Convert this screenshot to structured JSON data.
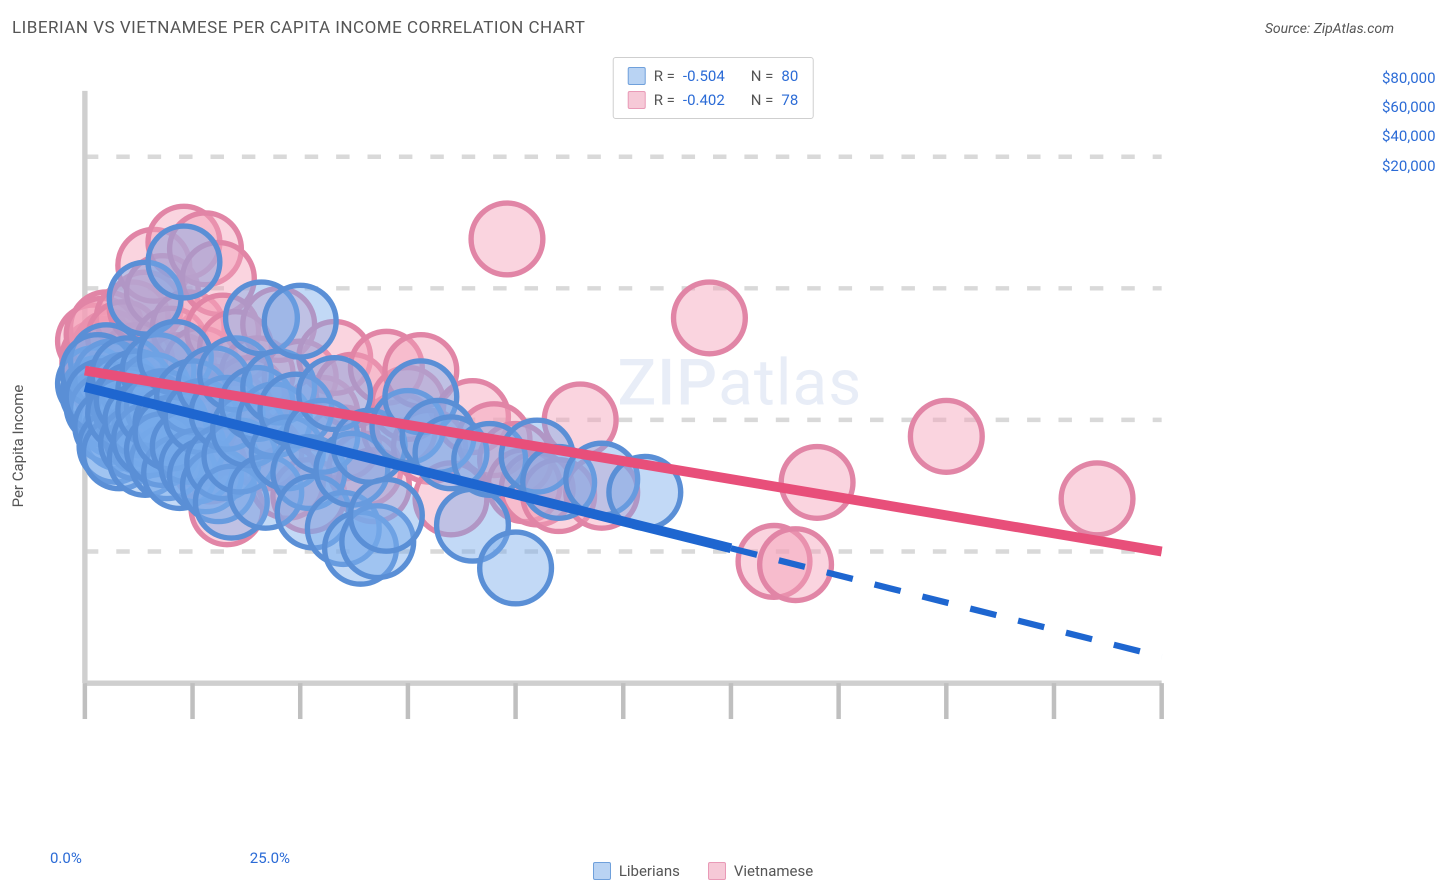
{
  "header": {
    "title": "LIBERIAN VS VIETNAMESE PER CAPITA INCOME CORRELATION CHART",
    "source": "Source: ZipAtlas.com"
  },
  "watermark": {
    "zip": "ZIP",
    "atlas": "atlas"
  },
  "chart": {
    "type": "scatter",
    "background_color": "#ffffff",
    "axis_color": "#cfcfcf",
    "grid_color": "#d9d9d9",
    "tick_color": "#bfbfbf",
    "label_color": "#555555",
    "value_color": "#2b6bd6",
    "ylabel": "Per Capita Income",
    "xlim": [
      0,
      25
    ],
    "ylim": [
      0,
      90000
    ],
    "xticks": [
      0,
      2.5,
      5,
      7.5,
      10,
      12.5,
      15,
      17.5,
      20,
      22.5,
      25
    ],
    "xtick_labels": {
      "0": "0.0%",
      "25": "25.0%"
    },
    "yticks": [
      20000,
      40000,
      60000,
      80000
    ],
    "ytick_labels": {
      "20000": "$20,000",
      "40000": "$40,000",
      "60000": "$60,000",
      "80000": "$80,000"
    },
    "marker_radius": 8,
    "marker_stroke_width": 1.2,
    "trend_line_width": 2.2,
    "series": {
      "liberians": {
        "label": "Liberians",
        "fill": "rgba(120,170,235,0.45)",
        "stroke": "#5a8fd6",
        "swatch_fill": "#b9d3f3",
        "swatch_border": "#6fa0db",
        "r_value": "-0.504",
        "n_value": "80",
        "trend": {
          "x1": 0,
          "y1": 45000,
          "x2": 15,
          "y2": 20500,
          "ext_x2": 25,
          "ext_y2": 4000,
          "color": "#1e66d0"
        },
        "points": [
          [
            0.2,
            45500
          ],
          [
            0.3,
            44000
          ],
          [
            0.5,
            49000
          ],
          [
            0.4,
            42000
          ],
          [
            0.6,
            46500
          ],
          [
            0.3,
            47500
          ],
          [
            0.7,
            40000
          ],
          [
            0.5,
            41500
          ],
          [
            0.8,
            38000
          ],
          [
            0.4,
            43500
          ],
          [
            0.9,
            44500
          ],
          [
            0.6,
            39000
          ],
          [
            1.0,
            47000
          ],
          [
            0.7,
            36000
          ],
          [
            1.1,
            40500
          ],
          [
            0.8,
            35000
          ],
          [
            1.2,
            45000
          ],
          [
            1.0,
            42500
          ],
          [
            1.3,
            37500
          ],
          [
            0.9,
            41000
          ],
          [
            1.4,
            58500
          ],
          [
            1.1,
            43000
          ],
          [
            1.5,
            38500
          ],
          [
            1.2,
            36500
          ],
          [
            1.6,
            44500
          ],
          [
            1.3,
            40000
          ],
          [
            1.7,
            47500
          ],
          [
            1.4,
            34000
          ],
          [
            1.8,
            42000
          ],
          [
            1.5,
            37000
          ],
          [
            1.9,
            33500
          ],
          [
            1.6,
            41500
          ],
          [
            2.0,
            39500
          ],
          [
            1.8,
            35500
          ],
          [
            2.1,
            49500
          ],
          [
            2.2,
            32000
          ],
          [
            2.3,
            64000
          ],
          [
            2.0,
            38000
          ],
          [
            2.4,
            36000
          ],
          [
            2.5,
            43500
          ],
          [
            2.6,
            33000
          ],
          [
            2.7,
            40500
          ],
          [
            2.8,
            31500
          ],
          [
            3.0,
            45500
          ],
          [
            3.1,
            30000
          ],
          [
            3.2,
            33500
          ],
          [
            3.3,
            41000
          ],
          [
            3.4,
            27500
          ],
          [
            3.5,
            47000
          ],
          [
            3.6,
            34500
          ],
          [
            3.8,
            38500
          ],
          [
            4.0,
            42500
          ],
          [
            4.1,
            55500
          ],
          [
            4.2,
            29000
          ],
          [
            4.4,
            40000
          ],
          [
            4.5,
            45000
          ],
          [
            4.7,
            35000
          ],
          [
            4.9,
            41500
          ],
          [
            5.0,
            55000
          ],
          [
            5.2,
            32000
          ],
          [
            5.3,
            26000
          ],
          [
            5.5,
            37500
          ],
          [
            5.8,
            44000
          ],
          [
            6.0,
            23500
          ],
          [
            6.2,
            32500
          ],
          [
            6.4,
            20500
          ],
          [
            6.6,
            36000
          ],
          [
            6.8,
            21500
          ],
          [
            7.0,
            25500
          ],
          [
            7.5,
            39000
          ],
          [
            7.8,
            43500
          ],
          [
            8.2,
            37500
          ],
          [
            8.5,
            35000
          ],
          [
            9.0,
            24000
          ],
          [
            9.4,
            34000
          ],
          [
            10.0,
            17500
          ],
          [
            10.5,
            34500
          ],
          [
            11.0,
            30500
          ],
          [
            12.0,
            31000
          ],
          [
            13.0,
            29000
          ]
        ]
      },
      "vietnamese": {
        "label": "Vietnamese",
        "fill": "rgba(245,160,185,0.45)",
        "stroke": "#e185a6",
        "swatch_fill": "#f6c9d7",
        "swatch_border": "#e99ab7",
        "r_value": "-0.402",
        "n_value": "78",
        "trend": {
          "x1": 0,
          "y1": 47500,
          "x2": 25,
          "y2": 20000,
          "color": "#e84f7a"
        },
        "points": [
          [
            0.2,
            52000
          ],
          [
            0.3,
            49500
          ],
          [
            0.5,
            54000
          ],
          [
            0.4,
            47000
          ],
          [
            0.6,
            51000
          ],
          [
            0.3,
            48500
          ],
          [
            0.7,
            45500
          ],
          [
            0.5,
            50000
          ],
          [
            0.8,
            46000
          ],
          [
            0.4,
            53000
          ],
          [
            0.9,
            43000
          ],
          [
            0.6,
            44500
          ],
          [
            1.0,
            48000
          ],
          [
            0.7,
            42000
          ],
          [
            1.1,
            55500
          ],
          [
            0.8,
            41000
          ],
          [
            1.2,
            49000
          ],
          [
            1.0,
            46500
          ],
          [
            1.3,
            39500
          ],
          [
            0.9,
            52500
          ],
          [
            1.4,
            57000
          ],
          [
            1.1,
            44000
          ],
          [
            1.5,
            40500
          ],
          [
            1.6,
            63500
          ],
          [
            1.7,
            38500
          ],
          [
            1.8,
            59500
          ],
          [
            2.0,
            51500
          ],
          [
            2.1,
            42500
          ],
          [
            1.9,
            37000
          ],
          [
            2.2,
            47500
          ],
          [
            2.3,
            67000
          ],
          [
            2.4,
            54000
          ],
          [
            2.5,
            41500
          ],
          [
            2.6,
            35500
          ],
          [
            2.7,
            48500
          ],
          [
            2.8,
            66000
          ],
          [
            3.0,
            44500
          ],
          [
            3.1,
            61500
          ],
          [
            2.9,
            33000
          ],
          [
            3.2,
            53500
          ],
          [
            3.3,
            26500
          ],
          [
            3.4,
            42000
          ],
          [
            3.5,
            51000
          ],
          [
            3.6,
            37500
          ],
          [
            3.8,
            44000
          ],
          [
            4.0,
            47000
          ],
          [
            4.2,
            35000
          ],
          [
            4.5,
            54500
          ],
          [
            4.7,
            30500
          ],
          [
            5.0,
            46500
          ],
          [
            5.2,
            28500
          ],
          [
            5.5,
            41000
          ],
          [
            5.8,
            49500
          ],
          [
            6.0,
            36500
          ],
          [
            6.2,
            44500
          ],
          [
            6.5,
            32500
          ],
          [
            6.7,
            30000
          ],
          [
            7.0,
            48000
          ],
          [
            7.3,
            38500
          ],
          [
            7.5,
            42500
          ],
          [
            7.8,
            47500
          ],
          [
            8.0,
            36000
          ],
          [
            8.5,
            28000
          ],
          [
            9.0,
            40500
          ],
          [
            9.5,
            37000
          ],
          [
            9.8,
            67500
          ],
          [
            10.0,
            34000
          ],
          [
            10.2,
            30000
          ],
          [
            10.5,
            29500
          ],
          [
            11.0,
            28500
          ],
          [
            11.5,
            40000
          ],
          [
            12.0,
            29000
          ],
          [
            14.5,
            55500
          ],
          [
            16.0,
            18500
          ],
          [
            16.5,
            18000
          ],
          [
            17.0,
            30500
          ],
          [
            20.0,
            37500
          ],
          [
            23.5,
            28000
          ]
        ]
      }
    }
  },
  "bottom_legend": [
    {
      "key": "liberians"
    },
    {
      "key": "vietnamese"
    }
  ]
}
